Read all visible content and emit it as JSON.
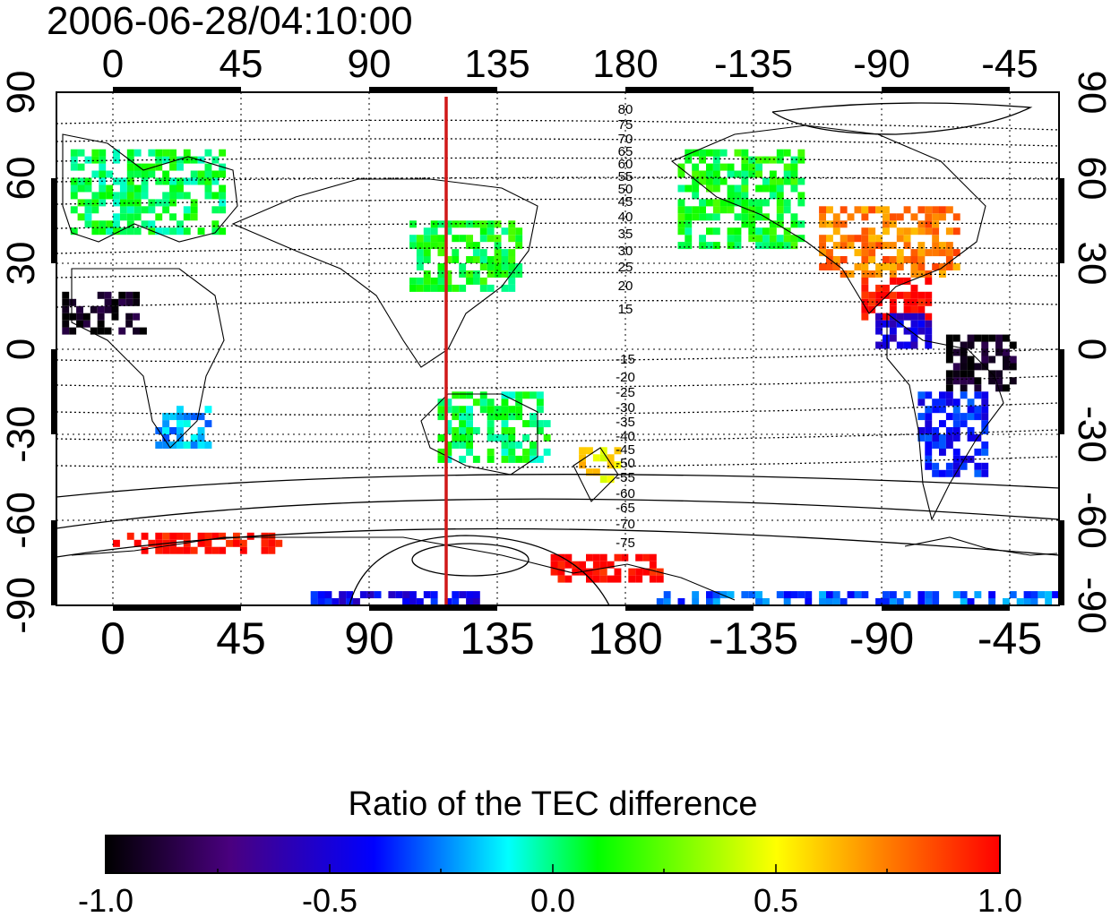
{
  "timestamp": "2006-06-28/04:10:00",
  "map": {
    "lon_ticks": [
      "0",
      "45",
      "90",
      "135",
      "180",
      "-135",
      "-90",
      "-45"
    ],
    "lat_ticks": [
      "90",
      "60",
      "30",
      "0",
      "-30",
      "-60",
      "-90"
    ],
    "lon_range": [
      -20,
      335
    ],
    "lat_range": [
      -90,
      90
    ],
    "marker_line": {
      "lon": 118,
      "color": "#d01818"
    },
    "contour_labels_north": [
      "80",
      "75",
      "70",
      "65",
      "60",
      "55",
      "50",
      "45",
      "40",
      "35",
      "30",
      "25",
      "20",
      "15"
    ],
    "contour_labels_south": [
      "-15",
      "-20",
      "-25",
      "-30",
      "-35",
      "-40",
      "-45",
      "-50",
      "-55",
      "-60",
      "-65",
      "-70",
      "-75"
    ]
  },
  "colorbar": {
    "title": "Ratio of the TEC difference",
    "tick_labels": [
      "-1.0",
      "-0.5",
      "0.0",
      "0.5",
      "1.0"
    ],
    "range": [
      -1.0,
      1.0
    ],
    "colors": [
      "#000000",
      "#4a0080",
      "#0000ff",
      "#00ffff",
      "#00ff00",
      "#ffff00",
      "#ff8000",
      "#ff0000"
    ]
  },
  "patches": [
    {
      "region": "Europe",
      "lon": [
        -15,
        40
      ],
      "lat": [
        40,
        70
      ],
      "value": 0.05
    },
    {
      "region": "West Africa",
      "lon": [
        -18,
        10
      ],
      "lat": [
        5,
        18
      ],
      "value": -0.95
    },
    {
      "region": "Southern Africa",
      "lon": [
        15,
        35
      ],
      "lat": [
        -35,
        -20
      ],
      "value": -0.2
    },
    {
      "region": "East Asia",
      "lon": [
        105,
        145
      ],
      "lat": [
        20,
        45
      ],
      "value": 0.1
    },
    {
      "region": "Australia",
      "lon": [
        115,
        155
      ],
      "lat": [
        -40,
        -15
      ],
      "value": 0.05
    },
    {
      "region": "New Zealand",
      "lon": [
        165,
        180
      ],
      "lat": [
        -47,
        -35
      ],
      "value": 0.55
    },
    {
      "region": "North America (west)",
      "lon": [
        -160,
        -115
      ],
      "lat": [
        35,
        70
      ],
      "value": 0.1
    },
    {
      "region": "North America (east)",
      "lon": [
        -110,
        -60
      ],
      "lat": [
        25,
        50
      ],
      "value": 0.75
    },
    {
      "region": "Caribbean",
      "lon": [
        -95,
        -70
      ],
      "lat": [
        10,
        25
      ],
      "value": 1.0
    },
    {
      "region": "Central America",
      "lon": [
        -90,
        -70
      ],
      "lat": [
        0,
        12
      ],
      "value": -0.5
    },
    {
      "region": "NE South America",
      "lon": [
        -65,
        -40
      ],
      "lat": [
        -15,
        5
      ],
      "value": -0.95
    },
    {
      "region": "South America",
      "lon": [
        -75,
        -50
      ],
      "lat": [
        -45,
        -15
      ],
      "value": -0.4
    },
    {
      "region": "Antarctic coast (Atlantic/Indian)",
      "lon": [
        0,
        60
      ],
      "lat": [
        -72,
        -65
      ],
      "value": 1.0
    },
    {
      "region": "Antarctic coast (Pacific)",
      "lon": [
        155,
        195
      ],
      "lat": [
        -82,
        -74
      ],
      "value": 1.0
    },
    {
      "region": "Antarctic interior",
      "lon": [
        70,
        130
      ],
      "lat": [
        -90,
        -86
      ],
      "value": -0.45
    },
    {
      "region": "Antarctic interior (west)",
      "lon": [
        190,
        335
      ],
      "lat": [
        -90,
        -86
      ],
      "value": -0.3
    }
  ]
}
